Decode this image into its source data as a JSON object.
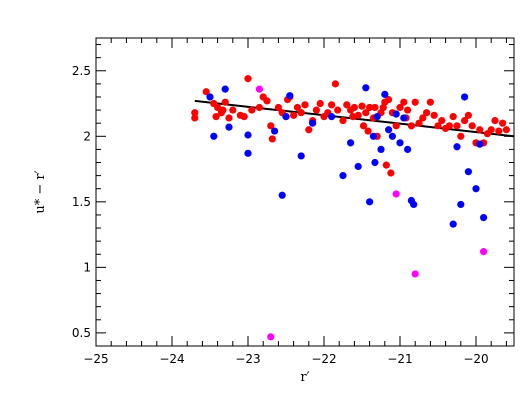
{
  "chart_data": {
    "type": "scatter",
    "title": "",
    "xlabel": "r′",
    "ylabel": "u* − r′",
    "xlim": [
      -25,
      -19.5
    ],
    "ylim": [
      0.4,
      2.75
    ],
    "x_ticks": [
      -25,
      -24,
      -23,
      -22,
      -21,
      -20
    ],
    "x_tick_labels": [
      "−25",
      "−24",
      "−23",
      "−22",
      "−21",
      "−20"
    ],
    "y_ticks": [
      0.5,
      1,
      1.5,
      2,
      2.5
    ],
    "y_tick_labels": [
      "0.5",
      "1",
      "1.5",
      "2",
      "2.5"
    ],
    "grid": false,
    "legend": "none",
    "colors": {
      "red": "#ff0000",
      "blue": "#0000ff",
      "magenta": "#ff00ff",
      "line": "#000000"
    },
    "fit_line": {
      "x": [
        -23.7,
        -19.5
      ],
      "y": [
        2.27,
        2.0
      ]
    },
    "series": [
      {
        "color": "red",
        "x": [
          -23.7,
          -23.7,
          -23.55,
          -23.45,
          -23.42,
          -23.4,
          -23.35,
          -23.33,
          -23.3,
          -23.25,
          -23.2,
          -23.1,
          -23.05,
          -23.0,
          -22.95,
          -22.85,
          -22.8,
          -22.75,
          -22.7,
          -22.68,
          -22.6,
          -22.55,
          -22.5,
          -22.48,
          -22.45,
          -22.4,
          -22.35,
          -22.3,
          -22.25,
          -22.2,
          -22.15,
          -22.1,
          -22.05,
          -22.0,
          -21.95,
          -21.9,
          -21.85,
          -21.82,
          -21.75,
          -21.7,
          -21.65,
          -21.62,
          -21.6,
          -21.55,
          -21.5,
          -21.48,
          -21.45,
          -21.42,
          -21.4,
          -21.35,
          -21.33,
          -21.3,
          -21.25,
          -21.2,
          -21.18,
          -21.15,
          -21.12,
          -21.1,
          -21.05,
          -21.0,
          -20.95,
          -20.92,
          -20.9,
          -20.85,
          -20.8,
          -20.75,
          -20.7,
          -20.65,
          -20.6,
          -20.55,
          -20.5,
          -20.45,
          -20.4,
          -20.35,
          -20.3,
          -20.25,
          -20.2,
          -20.15,
          -20.1,
          -20.05,
          -20.0,
          -19.95,
          -19.9,
          -19.85,
          -19.8,
          -19.75,
          -19.7,
          -19.65,
          -19.6,
          -21.22
        ],
        "y": [
          2.18,
          2.14,
          2.34,
          2.25,
          2.15,
          2.22,
          2.18,
          2.2,
          2.26,
          2.14,
          2.2,
          2.16,
          2.15,
          2.44,
          2.2,
          2.22,
          2.3,
          2.27,
          2.08,
          1.98,
          2.22,
          2.18,
          2.15,
          2.28,
          2.3,
          2.16,
          2.22,
          2.18,
          2.24,
          2.05,
          2.12,
          2.2,
          2.25,
          2.15,
          2.18,
          2.24,
          2.4,
          2.2,
          2.12,
          2.24,
          2.2,
          2.15,
          2.22,
          2.16,
          2.23,
          2.08,
          2.18,
          2.04,
          2.22,
          2.14,
          2.22,
          2.0,
          2.18,
          2.26,
          1.78,
          2.28,
          1.72,
          2.18,
          2.08,
          2.22,
          2.26,
          2.14,
          2.2,
          2.08,
          2.26,
          2.1,
          2.14,
          2.18,
          2.26,
          2.16,
          2.08,
          2.12,
          2.06,
          2.08,
          2.15,
          2.08,
          2.0,
          2.12,
          2.16,
          2.08,
          1.95,
          2.05,
          1.95,
          2.02,
          2.05,
          2.12,
          2.04,
          2.1,
          2.05,
          2.22
        ]
      },
      {
        "color": "blue",
        "x": [
          -23.5,
          -23.45,
          -23.3,
          -23.25,
          -23.0,
          -23.0,
          -22.65,
          -22.55,
          -22.5,
          -22.45,
          -22.3,
          -22.15,
          -21.9,
          -21.75,
          -21.65,
          -21.55,
          -21.45,
          -21.4,
          -21.35,
          -21.33,
          -21.3,
          -21.25,
          -21.2,
          -21.15,
          -21.1,
          -21.05,
          -21.0,
          -20.95,
          -20.9,
          -20.85,
          -20.82,
          -20.3,
          -20.25,
          -20.2,
          -20.15,
          -20.1,
          -20.0,
          -19.95,
          -19.9
        ],
        "y": [
          2.3,
          2.0,
          2.36,
          2.07,
          1.87,
          2.01,
          2.04,
          1.55,
          2.15,
          2.31,
          1.85,
          2.1,
          2.15,
          1.7,
          1.95,
          1.77,
          2.37,
          1.5,
          2.0,
          1.8,
          2.15,
          1.9,
          2.32,
          2.05,
          2.0,
          2.17,
          1.95,
          2.14,
          1.9,
          1.51,
          1.48,
          1.33,
          1.92,
          1.48,
          2.3,
          1.73,
          1.6,
          1.94,
          1.38
        ]
      },
      {
        "color": "magenta",
        "x": [
          -22.85,
          -22.7,
          -21.05,
          -20.8,
          -19.9
        ],
        "y": [
          2.36,
          0.47,
          1.56,
          0.95,
          1.12
        ]
      }
    ]
  }
}
